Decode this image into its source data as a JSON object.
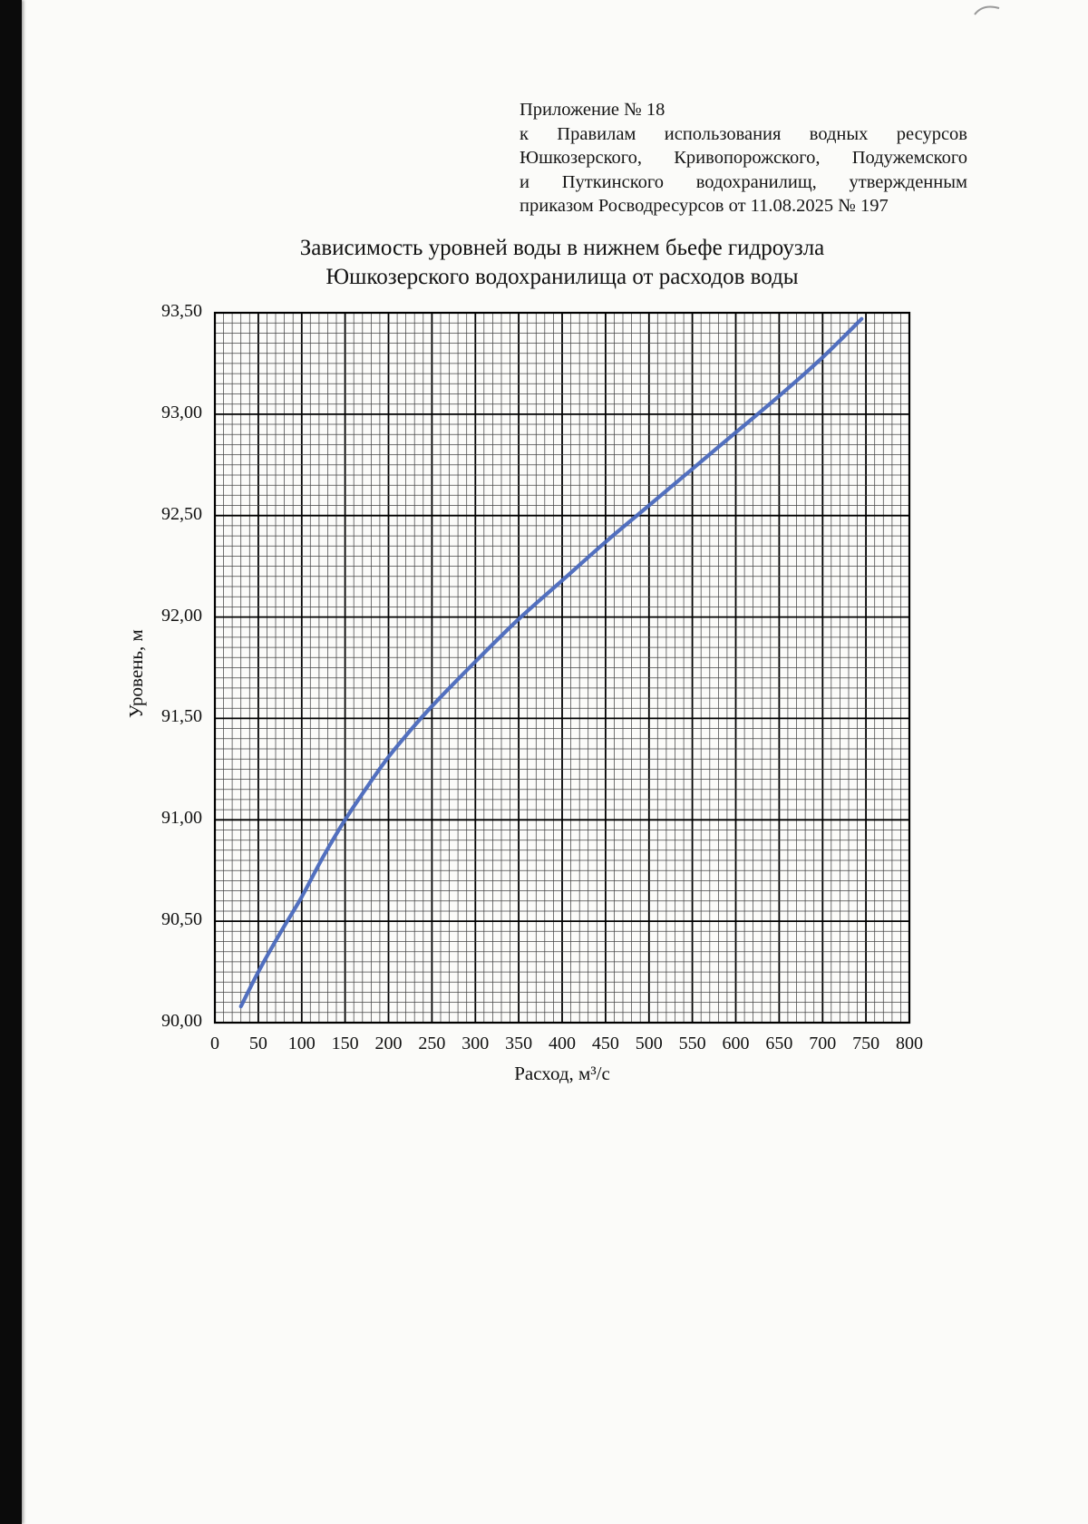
{
  "header": {
    "lines": [
      "Приложение № 18",
      "к Правилам использования водных ресурсов",
      "Юшкозерского, Кривопорожского, Подужемского",
      "и Путкинского водохранилищ, утвержденным",
      "приказом Росводресурсов от 11.08.2025 № 197"
    ]
  },
  "title": {
    "line1": "Зависимость уровней воды в нижнем бьефе гидроузла",
    "line2": "Юшкозерского водохранилища от расходов воды"
  },
  "chart_data": {
    "type": "line",
    "title": "Зависимость уровней воды в нижнем бьефе гидроузла Юшкозерского водохранилища от расходов воды",
    "xlabel": "Расход, м³/с",
    "ylabel": "Уровень, м",
    "xlim": [
      0,
      800
    ],
    "ylim": [
      90.0,
      93.5
    ],
    "x_ticks": [
      0,
      50,
      100,
      150,
      200,
      250,
      300,
      350,
      400,
      450,
      500,
      550,
      600,
      650,
      700,
      750,
      800
    ],
    "x_tick_labels": [
      "0",
      "50",
      "100",
      "150",
      "200",
      "250",
      "300",
      "350",
      "400",
      "450",
      "500",
      "550",
      "600",
      "650",
      "700",
      "750",
      "800"
    ],
    "y_ticks": [
      90.0,
      90.5,
      91.0,
      91.5,
      92.0,
      92.5,
      93.0,
      93.5
    ],
    "y_tick_labels": [
      "90,00",
      "90,50",
      "91,00",
      "91,50",
      "92,00",
      "92,50",
      "93,00",
      "93,50"
    ],
    "x_minor_step": 10,
    "x_major_step": 50,
    "y_minor_step": 0.05,
    "y_major_step": 0.5,
    "grid": "fine graph-paper grid with bold major lines",
    "legend": "none",
    "line_color": "#4a69bd",
    "series": [
      {
        "points": [
          [
            30,
            90.08
          ],
          [
            50,
            90.25
          ],
          [
            75,
            90.44
          ],
          [
            100,
            90.62
          ],
          [
            125,
            90.82
          ],
          [
            150,
            91.0
          ],
          [
            175,
            91.16
          ],
          [
            200,
            91.31
          ],
          [
            225,
            91.44
          ],
          [
            250,
            91.56
          ],
          [
            300,
            91.78
          ],
          [
            350,
            91.99
          ],
          [
            400,
            92.18
          ],
          [
            450,
            92.37
          ],
          [
            500,
            92.55
          ],
          [
            550,
            92.73
          ],
          [
            600,
            92.91
          ],
          [
            650,
            93.09
          ],
          [
            700,
            93.28
          ],
          [
            745,
            93.47
          ]
        ]
      }
    ]
  }
}
